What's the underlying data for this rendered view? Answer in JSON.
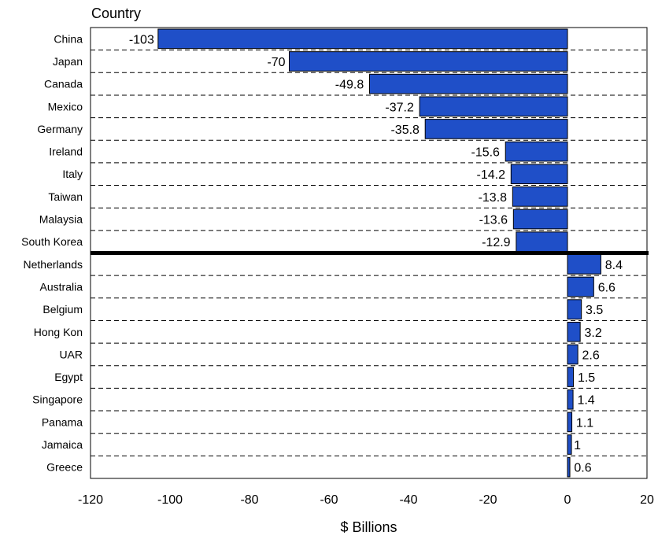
{
  "chart_data": {
    "type": "bar",
    "orientation": "horizontal",
    "title": "Country",
    "xlabel": "$ Billions",
    "ylabel": "",
    "xlim": [
      -120,
      20
    ],
    "xticks": [
      -120,
      -100,
      -80,
      -60,
      -40,
      -20,
      0,
      20
    ],
    "xtick_labels": [
      "-120",
      "-100",
      "-80",
      "-60",
      "-40",
      "-20",
      "0",
      "20"
    ],
    "grid": "dashed horizontal",
    "legend": "none",
    "bar_color": "#1f4fc8",
    "categories": [
      "China",
      "Japan",
      "Canada",
      "Mexico",
      "Germany",
      "Ireland",
      "Italy",
      "Taiwan",
      "Malaysia",
      "South Korea",
      "Netherlands",
      "Australia",
      "Belgium",
      "Hong Kon",
      "UAR",
      "Egypt",
      "Singapore",
      "Panama",
      "Jamaica",
      "Greece"
    ],
    "values": [
      -103,
      -70,
      -49.8,
      -37.2,
      -35.8,
      -15.6,
      -14.2,
      -13.8,
      -13.6,
      -12.9,
      8.4,
      6.6,
      3.5,
      3.2,
      2.6,
      1.5,
      1.4,
      1.1,
      1,
      0.6
    ],
    "data_labels": [
      "-103",
      "-70",
      "-49.8",
      "-37.2",
      "-35.8",
      "-15.6",
      "-14.2",
      "-13.8",
      "-13.6",
      "-12.9",
      "8.4",
      "6.6",
      "3.5",
      "3.2",
      "2.6",
      "1.5",
      "1.4",
      "1.1",
      "1",
      "0.6"
    ]
  }
}
